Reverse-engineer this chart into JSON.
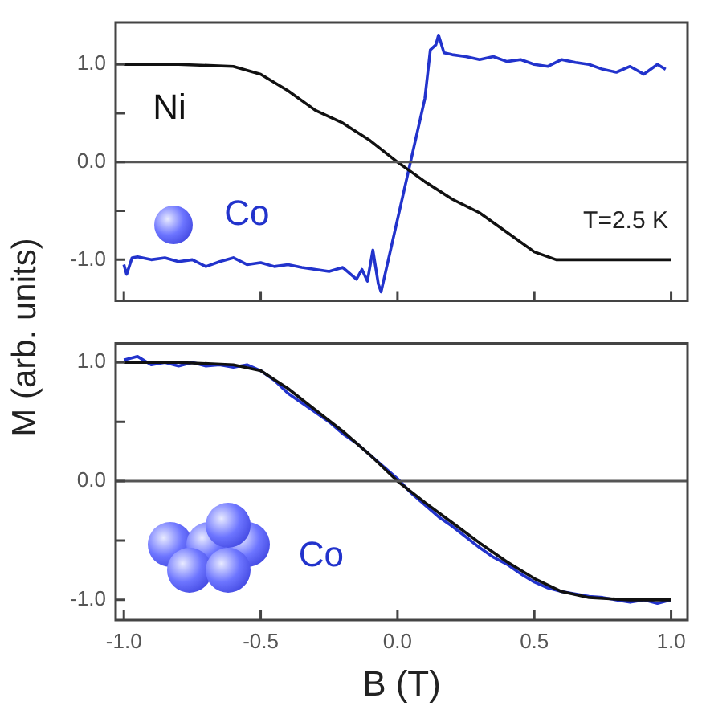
{
  "chart_data": [
    {
      "type": "line",
      "ylabel": "M (arb. units)",
      "annotations": [
        "T=2.5 K"
      ],
      "xlim": [
        -1.03,
        1.06
      ],
      "ylim": [
        -1.42,
        1.43
      ],
      "xticks": [
        {
          "value": -1,
          "label": null
        },
        {
          "value": -0.5,
          "label": null
        },
        {
          "value": 0,
          "label": null
        },
        {
          "value": 0.5,
          "label": null
        },
        {
          "value": 1,
          "label": null
        }
      ],
      "yticks": [
        {
          "value": -1,
          "label": "-1.0"
        },
        {
          "value": -0.5,
          "label": null
        },
        {
          "value": 0,
          "label": "0.0"
        },
        {
          "value": 0.5,
          "label": null
        },
        {
          "value": 1,
          "label": "1.0"
        }
      ],
      "tick_labels": "y",
      "ref_lines": [
        {
          "axis": "y",
          "value": 0,
          "color": "#555555"
        }
      ],
      "marker": "none",
      "series": [
        {
          "name": "Ni",
          "color": "#111111",
          "x": [
            -1.0,
            -0.8,
            -0.6,
            -0.5,
            -0.4,
            -0.3,
            -0.2,
            -0.1,
            0.0,
            0.1,
            0.2,
            0.3,
            0.4,
            0.5,
            0.58,
            0.7,
            0.85,
            1.0
          ],
          "values": [
            1.0,
            1.0,
            0.98,
            0.9,
            0.73,
            0.53,
            0.4,
            0.22,
            0.0,
            -0.2,
            -0.38,
            -0.52,
            -0.72,
            -0.92,
            -1.0,
            -1.0,
            -1.0,
            -1.0
          ]
        },
        {
          "name": "Co",
          "color": "#2233cc",
          "x": [
            -1.0,
            -0.99,
            -0.97,
            -0.95,
            -0.9,
            -0.85,
            -0.8,
            -0.75,
            -0.7,
            -0.65,
            -0.6,
            -0.55,
            -0.5,
            -0.45,
            -0.4,
            -0.35,
            -0.3,
            -0.25,
            -0.2,
            -0.15,
            -0.13,
            -0.11,
            -0.09,
            -0.07,
            -0.06,
            0.1,
            0.11,
            0.12,
            0.14,
            0.15,
            0.17,
            0.2,
            0.25,
            0.3,
            0.35,
            0.4,
            0.45,
            0.5,
            0.55,
            0.6,
            0.65,
            0.7,
            0.75,
            0.8,
            0.85,
            0.9,
            0.95,
            0.98
          ],
          "values": [
            -1.05,
            -1.15,
            -0.98,
            -0.97,
            -1.0,
            -0.98,
            -1.02,
            -1.0,
            -1.07,
            -1.02,
            -0.98,
            -1.05,
            -1.03,
            -1.07,
            -1.05,
            -1.08,
            -1.1,
            -1.12,
            -1.08,
            -1.2,
            -1.1,
            -1.22,
            -0.9,
            -1.25,
            -1.33,
            0.65,
            0.9,
            1.15,
            1.2,
            1.3,
            1.12,
            1.1,
            1.08,
            1.05,
            1.08,
            1.03,
            1.05,
            1.0,
            0.98,
            1.05,
            1.02,
            1.0,
            0.95,
            0.92,
            0.98,
            0.9,
            1.0,
            0.95
          ]
        }
      ]
    },
    {
      "type": "line",
      "xlabel": "B (T)",
      "xlim": [
        -1.03,
        1.06
      ],
      "ylim": [
        -1.17,
        1.16
      ],
      "xticks": [
        {
          "value": -1,
          "label": "-1.0"
        },
        {
          "value": -0.5,
          "label": "-0.5"
        },
        {
          "value": 0,
          "label": "0.0"
        },
        {
          "value": 0.5,
          "label": "0.5"
        },
        {
          "value": 1,
          "label": "1.0"
        }
      ],
      "yticks": [
        {
          "value": -1,
          "label": "-1.0"
        },
        {
          "value": -0.5,
          "label": null
        },
        {
          "value": 0,
          "label": "0.0"
        },
        {
          "value": 0.5,
          "label": null
        },
        {
          "value": 1,
          "label": "1.0"
        }
      ],
      "ref_lines": [
        {
          "axis": "y",
          "value": 0,
          "color": "#555555"
        }
      ],
      "marker": "none",
      "series": [
        {
          "color": "#111111",
          "x": [
            -1.0,
            -0.8,
            -0.6,
            -0.5,
            -0.4,
            -0.3,
            -0.2,
            -0.1,
            0.0,
            0.1,
            0.2,
            0.3,
            0.4,
            0.5,
            0.6,
            0.7,
            0.85,
            1.0
          ],
          "values": [
            1.0,
            1.0,
            0.98,
            0.93,
            0.78,
            0.6,
            0.42,
            0.22,
            0.0,
            -0.18,
            -0.35,
            -0.52,
            -0.68,
            -0.82,
            -0.93,
            -0.98,
            -1.0,
            -1.0
          ]
        },
        {
          "name": "Co",
          "color": "#2233cc",
          "x": [
            -1.0,
            -0.95,
            -0.9,
            -0.85,
            -0.8,
            -0.75,
            -0.7,
            -0.65,
            -0.6,
            -0.55,
            -0.5,
            -0.45,
            -0.4,
            -0.35,
            -0.3,
            -0.25,
            -0.2,
            -0.15,
            -0.1,
            -0.05,
            0.0,
            0.05,
            0.1,
            0.15,
            0.2,
            0.25,
            0.3,
            0.35,
            0.4,
            0.45,
            0.5,
            0.55,
            0.6,
            0.65,
            0.7,
            0.75,
            0.8,
            0.85,
            0.9,
            0.95,
            1.0
          ],
          "values": [
            1.02,
            1.05,
            0.98,
            1.0,
            0.97,
            1.0,
            0.97,
            0.98,
            0.96,
            0.98,
            0.93,
            0.85,
            0.74,
            0.66,
            0.58,
            0.5,
            0.4,
            0.32,
            0.22,
            0.12,
            0.02,
            -0.1,
            -0.2,
            -0.3,
            -0.38,
            -0.47,
            -0.56,
            -0.64,
            -0.7,
            -0.78,
            -0.85,
            -0.9,
            -0.93,
            -0.95,
            -0.97,
            -0.98,
            -1.0,
            -1.02,
            -1.0,
            -1.03,
            -1.0
          ]
        }
      ]
    }
  ]
}
